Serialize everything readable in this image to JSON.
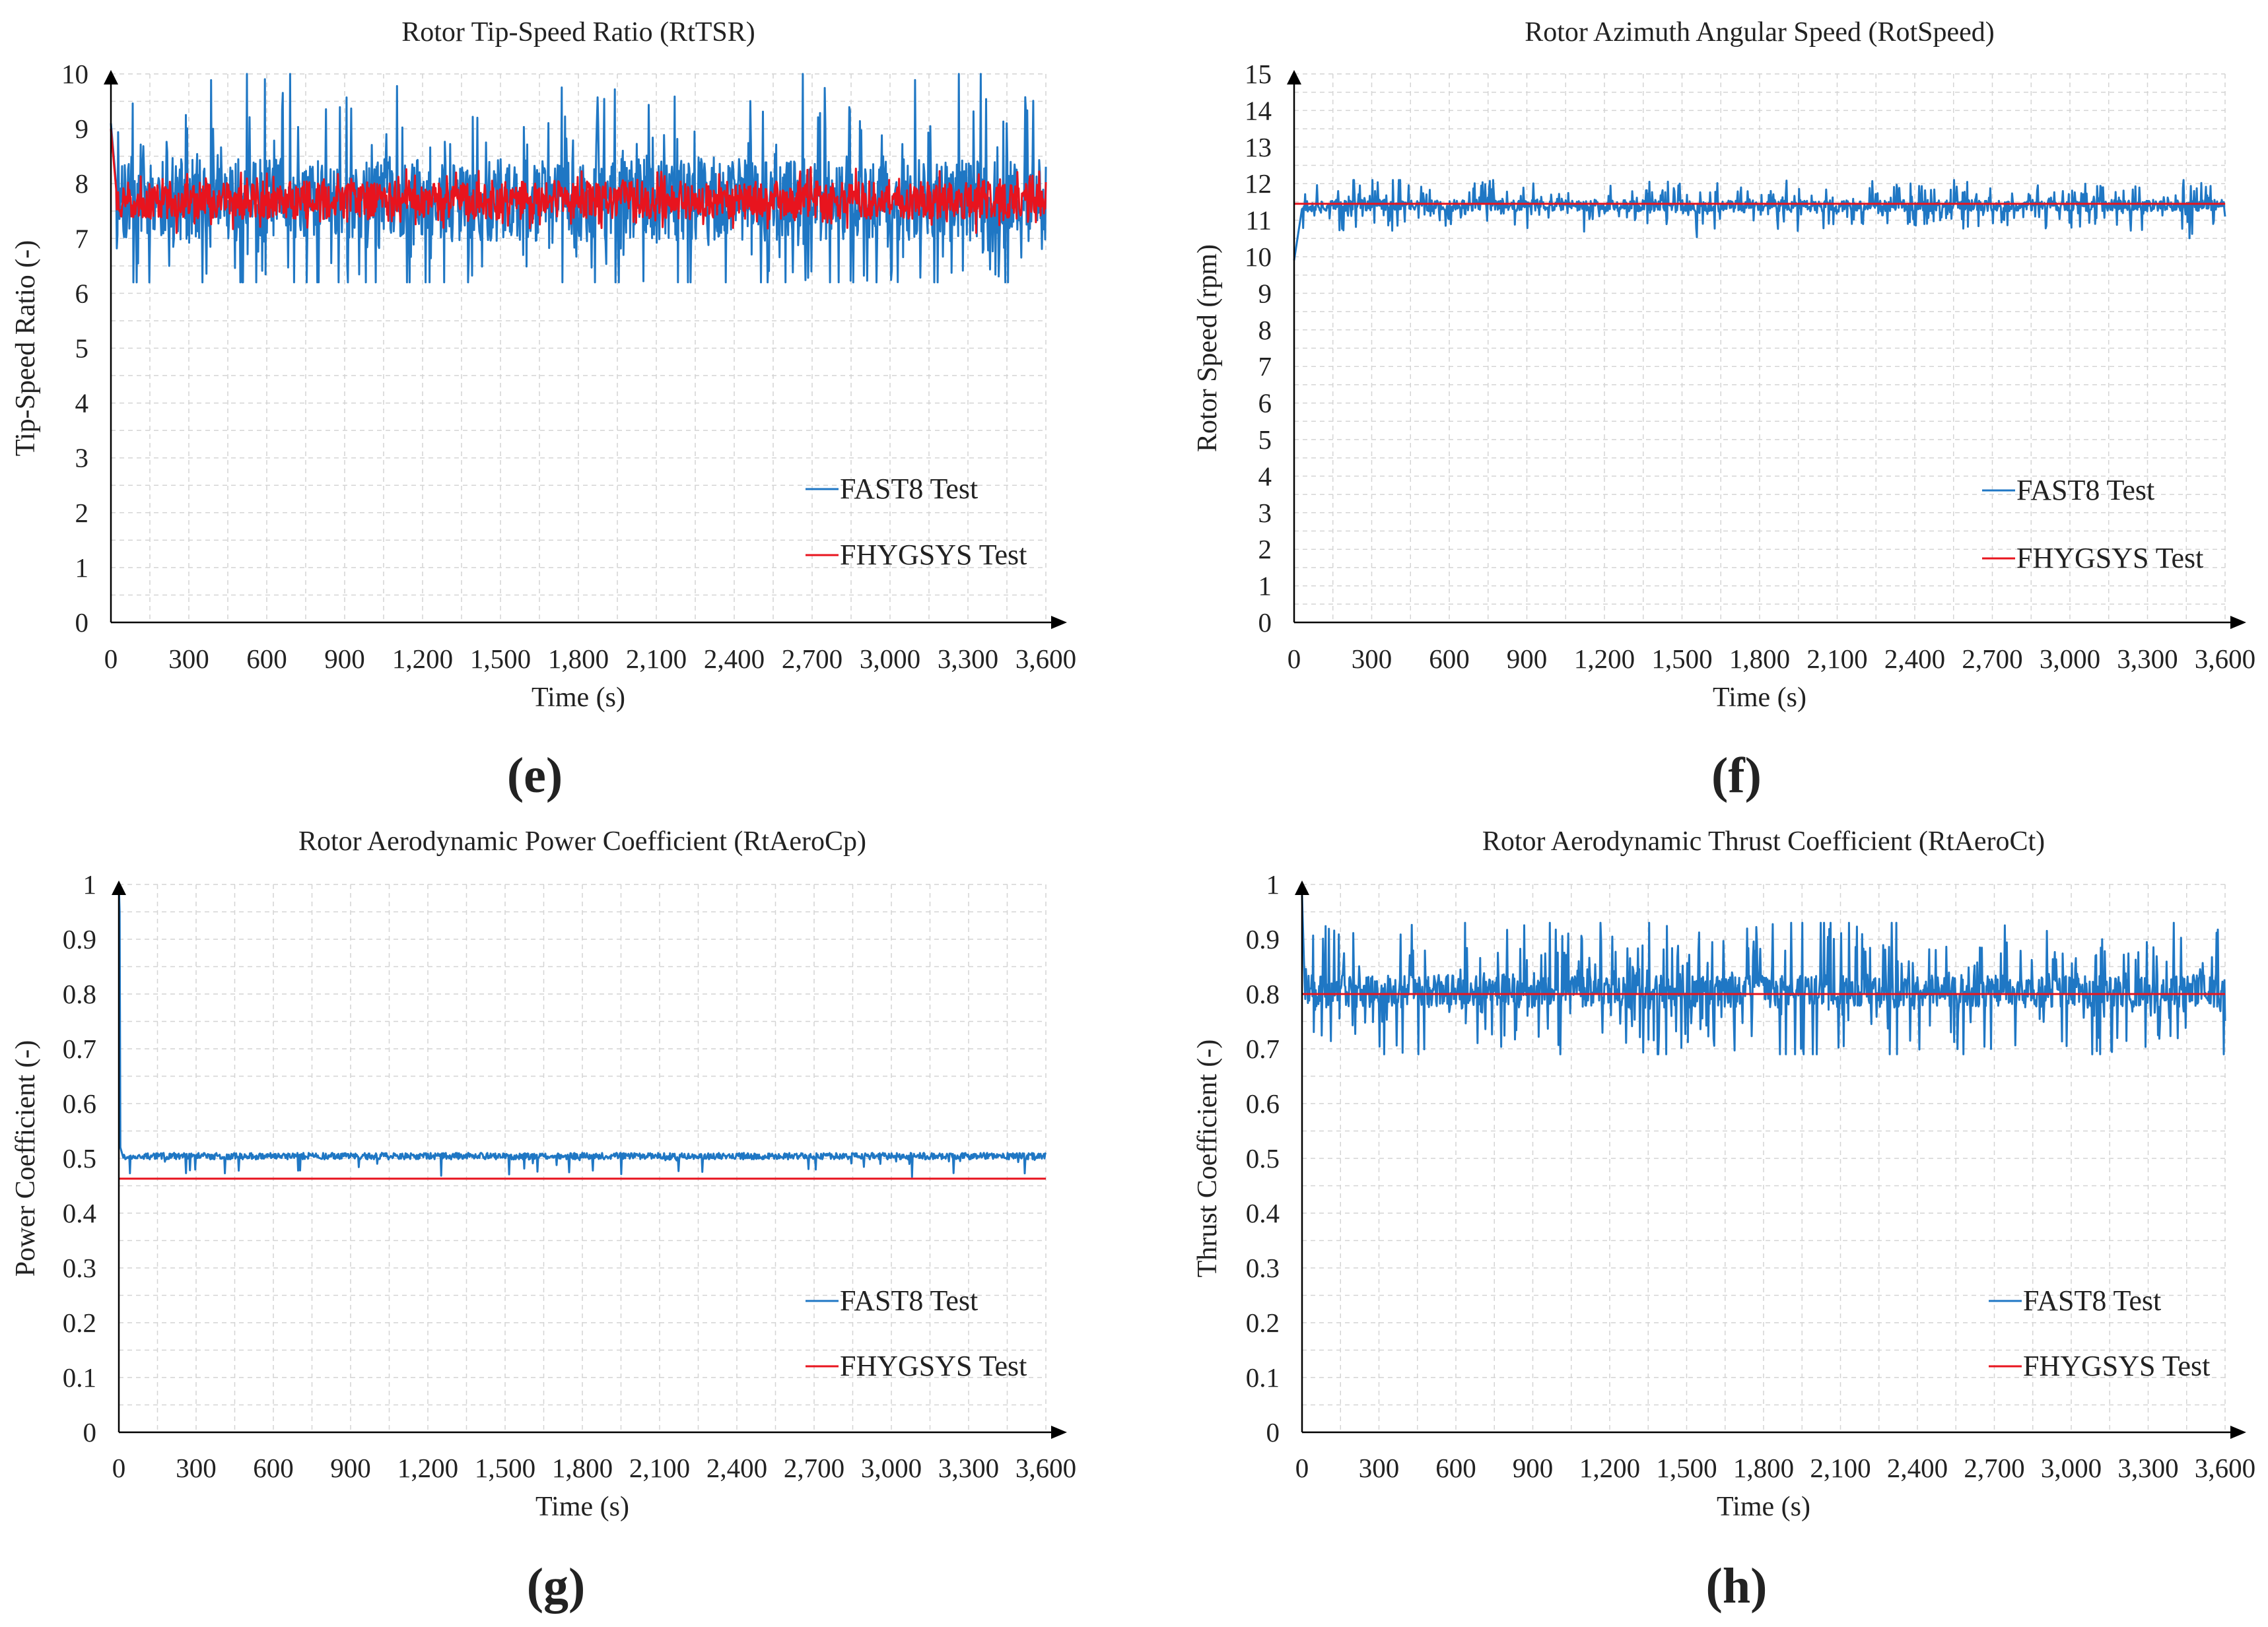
{
  "figure": {
    "legend_labels": [
      "FAST8 Test",
      "FHYGSYS Test"
    ],
    "series_colors": {
      "FAST8 Test": "#1f77c4",
      "FHYGSYS Test": "#e8141e"
    },
    "grid_color": "#d4d4d4",
    "axis_color": "#000000"
  },
  "chart_data": [
    {
      "panel_label": "(e)",
      "type": "line",
      "title": "Rotor Tip-Speed Ratio (RtTSR)",
      "xlabel": "Time (s)",
      "ylabel": "Tip-Speed Ratio (-)",
      "xlim": [
        0,
        3600
      ],
      "ylim": [
        0,
        10
      ],
      "xticks": [
        0,
        300,
        600,
        900,
        1200,
        1500,
        1800,
        2100,
        2400,
        2700,
        3000,
        3300,
        3600
      ],
      "xtick_labels": [
        "0",
        "300",
        "600",
        "900",
        "1,200",
        "1,500",
        "1,800",
        "2,100",
        "2,400",
        "2,700",
        "3,000",
        "3,300",
        "3,600"
      ],
      "yticks": [
        0,
        1,
        2,
        3,
        4,
        5,
        6,
        7,
        8,
        9,
        10
      ],
      "ytick_labels": [
        "0",
        "1",
        "2",
        "3",
        "4",
        "5",
        "6",
        "7",
        "8",
        "9",
        "10"
      ],
      "grid": true,
      "legend_position": "bottom-right",
      "series": [
        {
          "name": "FAST8 Test",
          "color": "#1f77c4",
          "width": 3,
          "samples": 1400,
          "seed": 11,
          "start": {
            "x": [
              0,
              20
            ],
            "y": [
              9.1,
              8.0
            ]
          },
          "mean": 7.7,
          "amplitude": 0.75,
          "bursts": 1.65,
          "min": 6.2,
          "max": 10.0
        },
        {
          "name": "FHYGSYS Test",
          "color": "#e8141e",
          "width": 3,
          "samples": 1400,
          "seed": 23,
          "start": {
            "x": [
              0,
              20
            ],
            "y": [
              9.0,
              7.9
            ]
          },
          "mean": 7.7,
          "amplitude": 0.34,
          "bursts": 0.25,
          "min": 7.1,
          "max": 8.3
        }
      ]
    },
    {
      "panel_label": "(f)",
      "type": "line",
      "title": "Rotor Azimuth Angular Speed (RotSpeed)",
      "xlabel": "Time (s)",
      "ylabel": "Rotor Speed (rpm)",
      "xlim": [
        0,
        3600
      ],
      "ylim": [
        0,
        15
      ],
      "xticks": [
        0,
        300,
        600,
        900,
        1200,
        1500,
        1800,
        2100,
        2400,
        2700,
        3000,
        3300,
        3600
      ],
      "xtick_labels": [
        "0",
        "300",
        "600",
        "900",
        "1,200",
        "1,500",
        "1,800",
        "2,100",
        "2,400",
        "2,700",
        "3,000",
        "3,300",
        "3,600"
      ],
      "yticks": [
        0,
        1,
        2,
        3,
        4,
        5,
        6,
        7,
        8,
        9,
        10,
        11,
        12,
        13,
        14,
        15
      ],
      "ytick_labels": [
        "0",
        "1",
        "2",
        "3",
        "4",
        "5",
        "6",
        "7",
        "8",
        "9",
        "10",
        "11",
        "12",
        "13",
        "14",
        "15"
      ],
      "grid": true,
      "legend_position": "bottom-right",
      "series": [
        {
          "name": "FAST8 Test",
          "color": "#1f77c4",
          "width": 3,
          "samples": 1400,
          "seed": 37,
          "start": {
            "x": [
              0,
              30
            ],
            "y": [
              9.9,
              11.3
            ]
          },
          "mean": 11.4,
          "amplitude": 0.16,
          "bursts": 0.55,
          "min": 10.5,
          "max": 12.1
        },
        {
          "name": "FHYGSYS Test",
          "color": "#e8141e",
          "width": 3,
          "constant": {
            "x": [
              0,
              3600
            ],
            "y": 11.45
          }
        }
      ]
    },
    {
      "panel_label": "(g)",
      "type": "line",
      "title": "Rotor Aerodynamic Power Coefficient (RtAeroCp)",
      "xlabel": "Time (s)",
      "ylabel": "Power Coefficient (-)",
      "xlim": [
        0,
        3600
      ],
      "ylim": [
        0,
        1
      ],
      "xticks": [
        0,
        300,
        600,
        900,
        1200,
        1500,
        1800,
        2100,
        2400,
        2700,
        3000,
        3300,
        3600
      ],
      "xtick_labels": [
        "0",
        "300",
        "600",
        "900",
        "1,200",
        "1,500",
        "1,800",
        "2,100",
        "2,400",
        "2,700",
        "3,000",
        "3,300",
        "3,600"
      ],
      "yticks": [
        0,
        0.1,
        0.2,
        0.3,
        0.4,
        0.5,
        0.6,
        0.7,
        0.8,
        0.9,
        1
      ],
      "ytick_labels": [
        "0",
        "0.1",
        "0.2",
        "0.3",
        "0.4",
        "0.5",
        "0.6",
        "0.7",
        "0.8",
        "0.9",
        "1"
      ],
      "grid": true,
      "legend_position": "bottom-right",
      "series": [
        {
          "name": "FAST8 Test",
          "color": "#1f77c4",
          "width": 3,
          "samples": 1400,
          "seed": 53,
          "start": {
            "x": [
              0,
              3,
              6,
              15
            ],
            "y": [
              1.0,
              0.95,
              0.52,
              0.505
            ]
          },
          "mean": 0.504,
          "amplitude": 0.006,
          "bursts": 0.0,
          "dips": 0.035,
          "min": 0.465,
          "max": 0.515
        },
        {
          "name": "FHYGSYS Test",
          "color": "#e8141e",
          "width": 3,
          "constant": {
            "x": [
              0,
              3600
            ],
            "y": 0.463
          }
        }
      ]
    },
    {
      "panel_label": "(h)",
      "type": "line",
      "title": "Rotor Aerodynamic Thrust Coefficient (RtAeroCt)",
      "xlabel": "Time (s)",
      "ylabel": "Thrust Coefficient (-)",
      "xlim": [
        0,
        3600
      ],
      "ylim": [
        0,
        1
      ],
      "xticks": [
        0,
        300,
        600,
        900,
        1200,
        1500,
        1800,
        2100,
        2400,
        2700,
        3000,
        3300,
        3600
      ],
      "xtick_labels": [
        "0",
        "300",
        "600",
        "900",
        "1,200",
        "1,500",
        "1,800",
        "2,100",
        "2,400",
        "2,700",
        "3,000",
        "3,300",
        "3,600"
      ],
      "yticks": [
        0,
        0.1,
        0.2,
        0.3,
        0.4,
        0.5,
        0.6,
        0.7,
        0.8,
        0.9,
        1
      ],
      "ytick_labels": [
        "0",
        "0.1",
        "0.2",
        "0.3",
        "0.4",
        "0.5",
        "0.6",
        "0.7",
        "0.8",
        "0.9",
        "1"
      ],
      "grid": true,
      "legend_position": "bottom-right",
      "series": [
        {
          "name": "FAST8 Test",
          "color": "#1f77c4",
          "width": 3,
          "samples": 1400,
          "seed": 71,
          "start": {
            "x": [
              0,
              10
            ],
            "y": [
              0.98,
              0.82
            ]
          },
          "mean": 0.805,
          "amplitude": 0.03,
          "bursts": 0.11,
          "min": 0.69,
          "max": 0.93
        },
        {
          "name": "FHYGSYS Test",
          "color": "#e8141e",
          "width": 3,
          "constant": {
            "x": [
              0,
              3600
            ],
            "y": 0.8
          }
        }
      ]
    }
  ]
}
